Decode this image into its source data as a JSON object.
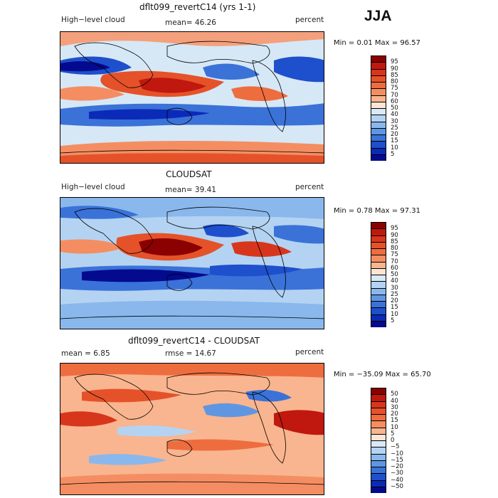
{
  "season": "JJA",
  "panels": [
    {
      "title": "dflt099_revertC14 (yrs 1-1)",
      "left_label": "High−level cloud",
      "mid_label": "mean=  46.26",
      "right_label": "percent",
      "minmax": "Min =    0.01  Max =   96.57"
    },
    {
      "title": "CLOUDSAT",
      "left_label": "High−level cloud",
      "mid_label": "mean=  39.41",
      "right_label": "percent",
      "minmax": "Min =    0.78  Max =   97.31"
    },
    {
      "title": "dflt099_revertC14 - CLOUDSAT",
      "left_label": "mean =    6.85",
      "mid_label": "rmse =   14.67",
      "right_label": "percent",
      "minmax": "Min = −35.09  Max =   65.70"
    }
  ],
  "colorbars": [
    {
      "labels": [
        "95",
        "90",
        "85",
        "80",
        "75",
        "70",
        "60",
        "50",
        "40",
        "30",
        "25",
        "20",
        "15",
        "10",
        "5"
      ],
      "colors": [
        "#8b0000",
        "#c0180e",
        "#d8361c",
        "#e5522a",
        "#ee6d3f",
        "#f48e62",
        "#f9b58f",
        "#fde5d4",
        "#d8e9f8",
        "#b4d3f2",
        "#8ab8ec",
        "#5f96e2",
        "#3a72d8",
        "#1e4fcc",
        "#0b2ab8",
        "#040a8e"
      ]
    },
    {
      "labels": [
        "95",
        "90",
        "85",
        "80",
        "75",
        "70",
        "60",
        "50",
        "40",
        "30",
        "25",
        "20",
        "15",
        "10",
        "5"
      ],
      "colors": [
        "#8b0000",
        "#c0180e",
        "#d8361c",
        "#e5522a",
        "#ee6d3f",
        "#f48e62",
        "#f9b58f",
        "#fde5d4",
        "#d8e9f8",
        "#b4d3f2",
        "#8ab8ec",
        "#5f96e2",
        "#3a72d8",
        "#1e4fcc",
        "#0b2ab8",
        "#040a8e"
      ]
    },
    {
      "labels": [
        "50",
        "40",
        "30",
        "20",
        "15",
        "10",
        "5",
        "0",
        "−5",
        "−10",
        "−15",
        "−20",
        "−30",
        "−40",
        "−50"
      ],
      "colors": [
        "#8b0000",
        "#c0180e",
        "#d8361c",
        "#e5522a",
        "#ee6d3f",
        "#f48e62",
        "#f9b58f",
        "#fde5d4",
        "#d8e9f8",
        "#b4d3f2",
        "#8ab8ec",
        "#5f96e2",
        "#3a72d8",
        "#1e4fcc",
        "#0b2ab8",
        "#040a8e"
      ]
    }
  ],
  "chart_data": [
    {
      "type": "heatmap",
      "title": "dflt099_revertC14 (yrs 1-1)",
      "variable": "High-level cloud",
      "units": "percent",
      "season": "JJA",
      "mean": 46.26,
      "min": 0.01,
      "max": 96.57,
      "contour_levels": [
        5,
        10,
        15,
        20,
        25,
        30,
        40,
        50,
        60,
        70,
        75,
        80,
        85,
        90,
        95
      ]
    },
    {
      "type": "heatmap",
      "title": "CLOUDSAT",
      "variable": "High-level cloud",
      "units": "percent",
      "season": "JJA",
      "mean": 39.41,
      "min": 0.78,
      "max": 97.31,
      "contour_levels": [
        5,
        10,
        15,
        20,
        25,
        30,
        40,
        50,
        60,
        70,
        75,
        80,
        85,
        90,
        95
      ]
    },
    {
      "type": "heatmap",
      "title": "dflt099_revertC14 - CLOUDSAT",
      "units": "percent",
      "season": "JJA",
      "mean": 6.85,
      "rmse": 14.67,
      "min": -35.09,
      "max": 65.7,
      "contour_levels": [
        -50,
        -40,
        -30,
        -20,
        -15,
        -10,
        -5,
        0,
        5,
        10,
        15,
        20,
        30,
        40,
        50
      ]
    }
  ]
}
